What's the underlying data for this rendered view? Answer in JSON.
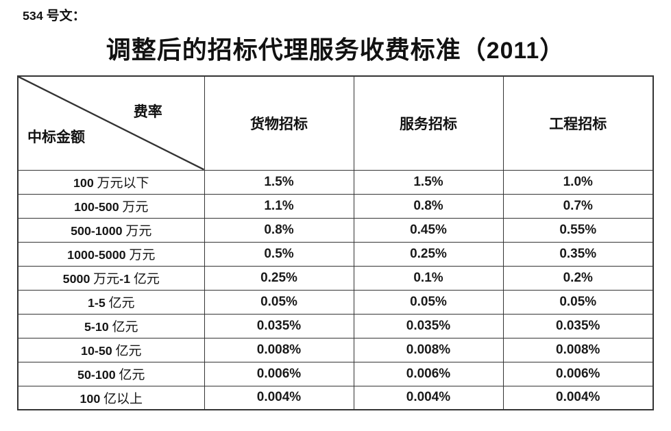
{
  "document": {
    "doc_number": "534 号文：",
    "title": "调整后的招标代理服务收费标准（2011）"
  },
  "colors": {
    "background": "#ffffff",
    "text": "#141414",
    "border": "#333333"
  },
  "table": {
    "corner": {
      "top_right_label": "费率",
      "bottom_left_label": "中标金额"
    },
    "columns": [
      "货物招标",
      "服务招标",
      "工程招标"
    ],
    "rows": [
      {
        "label": "100 万元以下",
        "values": [
          "1.5%",
          "1.5%",
          "1.0%"
        ]
      },
      {
        "label": "100-500 万元",
        "values": [
          "1.1%",
          "0.8%",
          "0.7%"
        ]
      },
      {
        "label": "500-1000 万元",
        "values": [
          "0.8%",
          "0.45%",
          "0.55%"
        ]
      },
      {
        "label": "1000-5000 万元",
        "values": [
          "0.5%",
          "0.25%",
          "0.35%"
        ]
      },
      {
        "label": "5000 万元-1 亿元",
        "values": [
          "0.25%",
          "0.1%",
          "0.2%"
        ]
      },
      {
        "label": "1-5 亿元",
        "values": [
          "0.05%",
          "0.05%",
          "0.05%"
        ]
      },
      {
        "label": "5-10 亿元",
        "values": [
          "0.035%",
          "0.035%",
          "0.035%"
        ]
      },
      {
        "label": "10-50 亿元",
        "values": [
          "0.008%",
          "0.008%",
          "0.008%"
        ]
      },
      {
        "label": "50-100 亿元",
        "values": [
          "0.006%",
          "0.006%",
          "0.006%"
        ]
      },
      {
        "label": "100 亿以上",
        "values": [
          "0.004%",
          "0.004%",
          "0.004%"
        ]
      }
    ]
  }
}
